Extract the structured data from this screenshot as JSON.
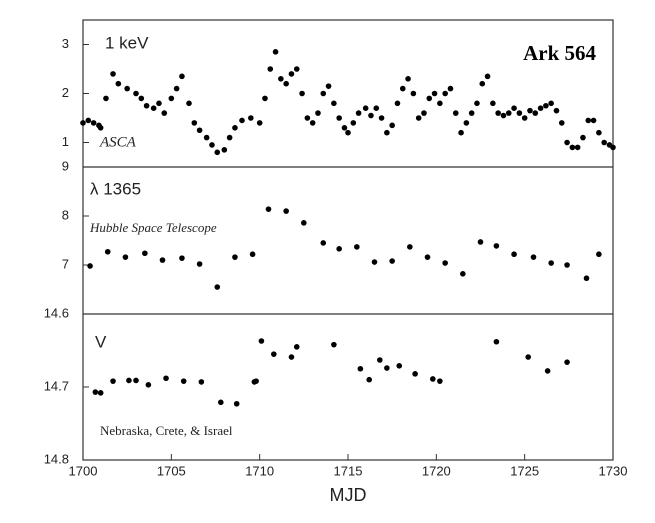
{
  "chart_data": [
    {
      "type": "scatter",
      "color": "#000000",
      "annotations": [
        "1 keV",
        "Ark 564",
        "ASCA"
      ],
      "x": [
        1700.0,
        1700.3,
        1700.6,
        1700.9,
        1701.0,
        1701.3,
        1701.7,
        1702.0,
        1702.5,
        1703.0,
        1703.3,
        1703.6,
        1704.0,
        1704.3,
        1704.6,
        1705.0,
        1705.3,
        1705.6,
        1706.0,
        1706.3,
        1706.6,
        1707.0,
        1707.3,
        1707.6,
        1708.0,
        1708.3,
        1708.6,
        1709.0,
        1709.5,
        1710.0,
        1710.3,
        1710.6,
        1710.9,
        1711.2,
        1711.5,
        1711.8,
        1712.1,
        1712.4,
        1712.7,
        1713.0,
        1713.3,
        1713.6,
        1713.9,
        1714.2,
        1714.5,
        1714.8,
        1715.0,
        1715.3,
        1715.6,
        1716.0,
        1716.3,
        1716.6,
        1716.9,
        1717.2,
        1717.5,
        1717.8,
        1718.1,
        1718.4,
        1718.7,
        1719.0,
        1719.3,
        1719.6,
        1719.9,
        1720.2,
        1720.5,
        1720.8,
        1721.1,
        1721.4,
        1721.7,
        1722.0,
        1722.3,
        1722.6,
        1722.9,
        1723.2,
        1723.5,
        1723.8,
        1724.1,
        1724.4,
        1724.7,
        1725.0,
        1725.3,
        1725.6,
        1725.9,
        1726.2,
        1726.5,
        1726.8,
        1727.1,
        1727.4,
        1727.7,
        1728.0,
        1728.3,
        1728.6,
        1728.9,
        1729.2,
        1729.5,
        1729.8,
        1730.0
      ],
      "values": [
        1.4,
        1.45,
        1.4,
        1.35,
        1.3,
        1.9,
        2.4,
        2.2,
        2.1,
        2.0,
        1.9,
        1.75,
        1.7,
        1.8,
        1.6,
        1.9,
        2.1,
        2.35,
        1.8,
        1.4,
        1.25,
        1.1,
        0.95,
        0.8,
        0.85,
        1.1,
        1.3,
        1.45,
        1.5,
        1.4,
        1.9,
        2.5,
        2.85,
        2.3,
        2.2,
        2.4,
        2.5,
        2.0,
        1.5,
        1.4,
        1.6,
        2.0,
        2.15,
        1.8,
        1.5,
        1.3,
        1.2,
        1.4,
        1.6,
        1.7,
        1.55,
        1.7,
        1.5,
        1.2,
        1.35,
        1.8,
        2.1,
        2.3,
        2.0,
        1.5,
        1.6,
        1.9,
        2.0,
        1.8,
        2.0,
        2.1,
        1.6,
        1.2,
        1.4,
        1.6,
        1.8,
        2.2,
        2.35,
        1.8,
        1.6,
        1.55,
        1.6,
        1.7,
        1.6,
        1.5,
        1.65,
        1.6,
        1.7,
        1.75,
        1.8,
        1.65,
        1.4,
        1.0,
        0.9,
        0.9,
        1.1,
        1.45,
        1.45,
        1.2,
        1.0,
        0.95,
        0.9
      ],
      "xlim": [
        1700,
        1730
      ],
      "ylim": [
        0.5,
        3.5
      ],
      "yticks": [
        1,
        2,
        3
      ]
    },
    {
      "type": "scatter",
      "color": "#000000",
      "annotations": [
        "λ 1365",
        "Hubble Space Telescope"
      ],
      "x": [
        1700.4,
        1701.4,
        1702.4,
        1703.5,
        1704.5,
        1705.6,
        1706.6,
        1707.6,
        1708.6,
        1709.6,
        1710.5,
        1711.5,
        1712.5,
        1713.6,
        1714.5,
        1715.5,
        1716.5,
        1717.5,
        1718.5,
        1719.5,
        1720.5,
        1721.5,
        1722.5,
        1723.4,
        1724.4,
        1725.5,
        1726.5,
        1727.4,
        1728.5,
        1729.2
      ],
      "values": [
        6.98,
        7.27,
        7.16,
        7.24,
        7.1,
        7.14,
        7.02,
        6.55,
        7.16,
        7.22,
        8.14,
        8.1,
        7.86,
        7.45,
        7.33,
        7.37,
        7.06,
        7.08,
        7.37,
        7.16,
        7.04,
        6.82,
        7.47,
        7.39,
        7.22,
        7.16,
        7.04,
        7.0,
        6.73,
        7.22
      ],
      "xlim": [
        1700,
        1730
      ],
      "ylim": [
        6,
        9
      ],
      "yticks": [
        7,
        8,
        9
      ]
    },
    {
      "type": "scatter",
      "color": "#000000",
      "annotations": [
        "V",
        "Nebraska, Crete, & Israel"
      ],
      "x": [
        1700.7,
        1701.0,
        1701.7,
        1702.6,
        1703.0,
        1703.7,
        1704.7,
        1705.7,
        1706.7,
        1707.8,
        1708.7,
        1709.7,
        1709.8,
        1710.1,
        1710.8,
        1711.8,
        1712.1,
        1714.2,
        1715.7,
        1716.2,
        1716.8,
        1717.2,
        1717.9,
        1718.8,
        1719.8,
        1720.2,
        1723.4,
        1725.2,
        1726.3,
        1727.4
      ],
      "values": [
        14.707,
        14.708,
        14.692,
        14.691,
        14.691,
        14.697,
        14.688,
        14.692,
        14.693,
        14.721,
        14.723,
        14.693,
        14.692,
        14.637,
        14.655,
        14.659,
        14.645,
        14.642,
        14.675,
        14.69,
        14.663,
        14.674,
        14.671,
        14.682,
        14.689,
        14.692,
        14.638,
        14.659,
        14.678,
        14.666
      ],
      "xlim": [
        1700,
        1730
      ],
      "ylim": [
        14.8,
        14.6
      ],
      "yticks": [
        14.6,
        14.7,
        14.8
      ],
      "xticks": [
        1700,
        1705,
        1710,
        1715,
        1720,
        1725,
        1730
      ],
      "x_label": "MJD"
    }
  ]
}
